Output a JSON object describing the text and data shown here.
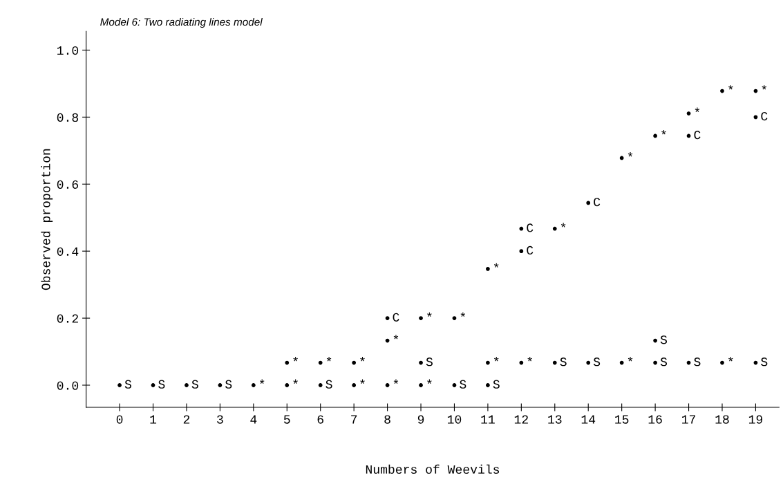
{
  "chart_data": {
    "type": "scatter",
    "title": "Model 6: Two radiating lines model",
    "xlabel": "Numbers of Weevils",
    "ylabel": "Observed proportion",
    "xlim": [
      -1,
      19.7
    ],
    "ylim": [
      -0.066,
      1.056
    ],
    "xticks": [
      0,
      1,
      2,
      3,
      4,
      5,
      6,
      7,
      8,
      9,
      10,
      11,
      12,
      13,
      14,
      15,
      16,
      17,
      18,
      19
    ],
    "yticks": [
      {
        "value": 0,
        "label": "0.0"
      },
      {
        "value": 0.2,
        "label": "0.2"
      },
      {
        "value": 0.4,
        "label": "0.4"
      },
      {
        "value": 0.6,
        "label": "0.6"
      },
      {
        "value": 0.8,
        "label": "0.8"
      },
      {
        "value": 1,
        "label": "1.0"
      }
    ],
    "grid": false,
    "marker": "circle",
    "series": [
      {
        "color": "#000000",
        "x": [
          0,
          1,
          2,
          3,
          6,
          10,
          11,
          9,
          13,
          14,
          16,
          17,
          19,
          16
        ],
        "values": [
          0,
          0,
          0,
          0,
          0,
          0,
          0,
          0.067,
          0.067,
          0.067,
          0.067,
          0.067,
          0.067,
          0.133
        ],
        "value_labels": [
          "S",
          "S",
          "S",
          "S",
          "S",
          "S",
          "S",
          "S",
          "S",
          "S",
          "S",
          "S",
          "S",
          "S"
        ]
      },
      {
        "color": "#000000",
        "x": [
          8,
          12,
          12,
          14,
          17,
          19
        ],
        "values": [
          0.2,
          0.4,
          0.467,
          0.544,
          0.744,
          0.8
        ],
        "value_labels": [
          "C",
          "C",
          "C",
          "C",
          "C",
          "C"
        ]
      },
      {
        "color": "#000000",
        "x": [
          4,
          5,
          7,
          8,
          9,
          5,
          6,
          7,
          11,
          12,
          15,
          18,
          8,
          9,
          10,
          11,
          13,
          15,
          16,
          17,
          18,
          19
        ],
        "values": [
          0,
          0,
          0,
          0,
          0,
          0.067,
          0.067,
          0.067,
          0.067,
          0.067,
          0.067,
          0.067,
          0.133,
          0.2,
          0.2,
          0.347,
          0.467,
          0.678,
          0.744,
          0.811,
          0.878,
          0.878
        ],
        "value_labels": [
          "*",
          "*",
          "*",
          "*",
          "*",
          "*",
          "*",
          "*",
          "*",
          "*",
          "*",
          "*",
          "*",
          "*",
          "*",
          "*",
          "*",
          "*",
          "*",
          "*",
          "*",
          "*"
        ]
      }
    ]
  }
}
